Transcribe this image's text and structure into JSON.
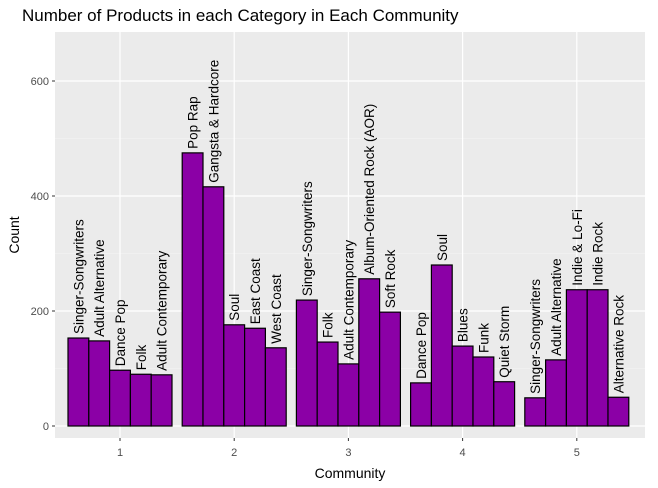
{
  "chart_data": {
    "type": "bar",
    "title": "Number of Products in each Category in Each Community",
    "xlabel": "Community",
    "ylabel": "Count",
    "ylim": [
      -20,
      680
    ],
    "yticks": [
      0,
      200,
      400,
      600
    ],
    "grid": true,
    "bar_color": "#8b00a6",
    "groups": [
      {
        "community": "1",
        "bars": [
          {
            "label": "Singer-Songwriters",
            "value": 153
          },
          {
            "label": "Adult Alternative",
            "value": 148
          },
          {
            "label": "Dance Pop",
            "value": 97
          },
          {
            "label": "Folk",
            "value": 90
          },
          {
            "label": "Adult Contemporary",
            "value": 89
          }
        ]
      },
      {
        "community": "2",
        "bars": [
          {
            "label": "Pop Rap",
            "value": 475
          },
          {
            "label": "Gangsta & Hardcore",
            "value": 416
          },
          {
            "label": "Soul",
            "value": 176
          },
          {
            "label": "East Coast",
            "value": 170
          },
          {
            "label": "West Coast",
            "value": 136
          }
        ]
      },
      {
        "community": "3",
        "bars": [
          {
            "label": "Singer-Songwriters",
            "value": 219
          },
          {
            "label": "Folk",
            "value": 146
          },
          {
            "label": "Adult Contemporary",
            "value": 108
          },
          {
            "label": "Album-Oriented Rock (AOR)",
            "value": 256
          },
          {
            "label": "Soft Rock",
            "value": 198
          }
        ]
      },
      {
        "community": "4",
        "bars": [
          {
            "label": "Dance Pop",
            "value": 75
          },
          {
            "label": "Soul",
            "value": 280
          },
          {
            "label": "Blues",
            "value": 139
          },
          {
            "label": "Funk",
            "value": 120
          },
          {
            "label": "Quiet Storm",
            "value": 77
          }
        ]
      },
      {
        "community": "5",
        "bars": [
          {
            "label": "Singer-Songwriters",
            "value": 49
          },
          {
            "label": "Adult Alternative",
            "value": 115
          },
          {
            "label": "Indie & Lo-Fi",
            "value": 237
          },
          {
            "label": "Indie Rock",
            "value": 237
          },
          {
            "label": "Alternative Rock",
            "value": 50
          }
        ]
      }
    ]
  }
}
